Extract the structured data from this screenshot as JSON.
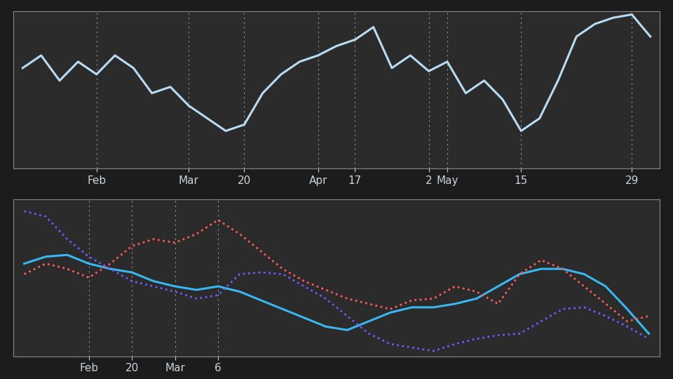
{
  "chart_data": [
    {
      "type": "line",
      "categories": [
        null,
        null,
        null,
        null,
        "Feb",
        null,
        null,
        null,
        null,
        "Mar",
        null,
        null,
        "20",
        null,
        null,
        null,
        "Apr",
        null,
        "17",
        null,
        null,
        null,
        "2",
        "May",
        null,
        null,
        null,
        "15",
        null,
        null,
        null,
        null,
        null,
        "29",
        null
      ],
      "series": [
        {
          "color": "#b9dcf5",
          "line_style": "solid",
          "values": [
            6.4,
            7.2,
            5.6,
            6.8,
            6.0,
            7.2,
            6.4,
            4.8,
            5.2,
            4.0,
            3.2,
            2.4,
            2.8,
            4.8,
            6.0,
            6.8,
            7.2,
            7.8,
            8.2,
            9.0,
            6.4,
            7.2,
            6.2,
            6.8,
            4.8,
            5.6,
            4.4,
            2.4,
            3.2,
            5.6,
            8.4,
            9.2,
            9.6,
            9.8,
            8.4
          ]
        }
      ],
      "ylim": [
        0,
        10
      ],
      "yticks": [],
      "tick_labels": "x",
      "grid": true
    },
    {
      "type": "line",
      "categories": [
        null,
        null,
        null,
        "Feb",
        null,
        "20",
        null,
        "Mar",
        null,
        "6",
        null,
        null,
        null,
        null,
        null,
        null,
        null,
        null,
        null,
        null,
        null,
        null,
        null,
        null,
        null,
        null,
        null,
        null,
        null,
        null
      ],
      "series": [
        {
          "color": "#3ab6f0",
          "line_style": "solid",
          "values": [
            5.3,
            5.7,
            5.8,
            5.3,
            5.0,
            4.8,
            4.3,
            4.0,
            3.8,
            4.0,
            3.7,
            3.2,
            2.7,
            2.2,
            1.7,
            1.5,
            2.0,
            2.5,
            2.8,
            2.8,
            3.0,
            3.3,
            4.0,
            4.7,
            5.0,
            5.0,
            4.7,
            4.0,
            2.7,
            1.3
          ]
        },
        {
          "color": "#ff5a5a",
          "line_style": "dotted",
          "values": [
            4.7,
            5.3,
            5.0,
            4.5,
            5.3,
            6.3,
            6.7,
            6.5,
            7.0,
            7.8,
            7.0,
            6.0,
            5.0,
            4.3,
            3.8,
            3.3,
            3.0,
            2.7,
            3.2,
            3.3,
            4.0,
            3.7,
            3.0,
            4.7,
            5.5,
            5.0,
            4.0,
            3.0,
            2.0,
            2.3
          ]
        },
        {
          "color": "#6a5cff",
          "line_style": "dotted",
          "values": [
            8.3,
            8.0,
            6.7,
            5.7,
            5.0,
            4.3,
            4.0,
            3.7,
            3.3,
            3.5,
            4.7,
            4.8,
            4.7,
            4.0,
            3.3,
            2.3,
            1.3,
            0.7,
            0.5,
            0.3,
            0.7,
            1.0,
            1.2,
            1.3,
            2.0,
            2.7,
            2.8,
            2.3,
            1.7,
            1.0
          ]
        }
      ],
      "ylim": [
        0,
        9
      ],
      "yticks": [],
      "tick_labels": "x",
      "grid": true
    }
  ]
}
